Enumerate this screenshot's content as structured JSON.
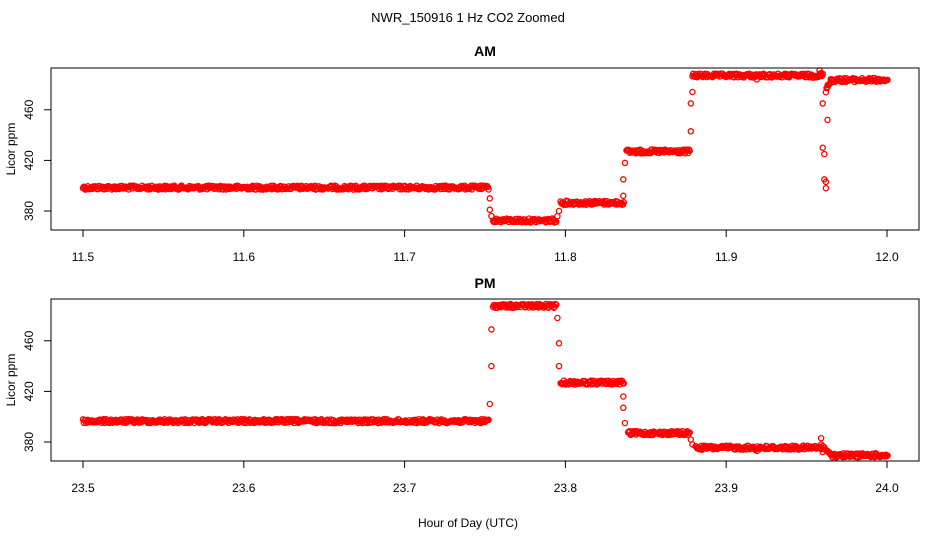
{
  "title": "NWR_150916  1 Hz CO2 Zoomed",
  "xlabel": "Hour of Day (UTC)",
  "colors": {
    "points": "#ff0000",
    "frame": "#000000"
  },
  "chart_data": [
    {
      "type": "scatter",
      "title": "AM",
      "xlabel": "",
      "ylabel": "Licor ppm",
      "xlim": [
        11.5,
        12.0
      ],
      "ylim": [
        365,
        493
      ],
      "xticks": [
        11.5,
        11.6,
        11.7,
        11.8,
        11.9,
        12.0
      ],
      "xtick_labels": [
        "11.5",
        "11.6",
        "11.7",
        "11.8",
        "11.9",
        "12.0"
      ],
      "yticks": [
        380,
        420,
        460
      ],
      "ytick_labels": [
        "380",
        "420",
        "460"
      ],
      "grid": false,
      "series": [
        {
          "segments": [
            {
              "x0": 11.5,
              "x1": 11.752,
              "y": 398.5
            },
            {
              "x0": 11.755,
              "x1": 11.794,
              "y": 372.5
            },
            {
              "x0": 11.797,
              "x1": 11.836,
              "y": 386.5
            },
            {
              "x0": 11.838,
              "x1": 11.877,
              "y": 427
            },
            {
              "x0": 11.879,
              "x1": 11.96,
              "y": 487
            }
          ],
          "recovery": {
            "x0": 11.962,
            "x1": 11.965,
            "y0": 474,
            "y1": 482
          },
          "final": {
            "x0": 11.965,
            "x1": 12.0,
            "y": 483.5
          },
          "points": [
            [
              11.753,
              390
            ],
            [
              11.753,
              381
            ],
            [
              11.754,
              376
            ],
            [
              11.795,
              376
            ],
            [
              11.796,
              380
            ],
            [
              11.836,
              392
            ],
            [
              11.836,
              405
            ],
            [
              11.837,
              418
            ],
            [
              11.878,
              443
            ],
            [
              11.878,
              465
            ],
            [
              11.879,
              474
            ],
            [
              11.919,
              484
            ],
            [
              11.958,
              491
            ],
            [
              11.959,
              489
            ],
            [
              11.96,
              465
            ],
            [
              11.96,
              430
            ],
            [
              11.961,
              425
            ],
            [
              11.961,
              405
            ],
            [
              11.962,
              398
            ],
            [
              11.962,
              403
            ],
            [
              11.963,
              452
            ],
            [
              11.963,
              478
            ]
          ]
        }
      ]
    },
    {
      "type": "scatter",
      "title": "PM",
      "xlabel": "",
      "ylabel": "Licor ppm",
      "xlim": [
        23.5,
        24.0
      ],
      "ylim": [
        365,
        493
      ],
      "xticks": [
        23.5,
        23.6,
        23.7,
        23.8,
        23.9,
        24.0
      ],
      "xtick_labels": [
        "23.5",
        "23.6",
        "23.7",
        "23.8",
        "23.9",
        "24.0"
      ],
      "yticks": [
        380,
        420,
        460
      ],
      "ytick_labels": [
        "380",
        "420",
        "460"
      ],
      "grid": false,
      "series": [
        {
          "segments": [
            {
              "x0": 23.5,
              "x1": 23.752,
              "y": 396.5
            },
            {
              "x0": 23.755,
              "x1": 23.794,
              "y": 487.5
            },
            {
              "x0": 23.797,
              "x1": 23.836,
              "y": 427
            },
            {
              "x0": 23.839,
              "x1": 23.877,
              "y": 387
            },
            {
              "x0": 23.881,
              "x1": 23.96,
              "y": 375.5
            }
          ],
          "recovery": {
            "x0": 23.961,
            "x1": 23.966,
            "y0": 376,
            "y1": 370
          },
          "final": {
            "x0": 23.966,
            "x1": 24.0,
            "y": 369.5
          },
          "points": [
            [
              23.753,
              410
            ],
            [
              23.754,
              440
            ],
            [
              23.754,
              469
            ],
            [
              23.795,
              478
            ],
            [
              23.796,
              458
            ],
            [
              23.796,
              440
            ],
            [
              23.836,
              416
            ],
            [
              23.836,
              407
            ],
            [
              23.837,
              395
            ],
            [
              23.878,
              382
            ],
            [
              23.879,
              378
            ],
            [
              23.919,
              373
            ],
            [
              23.959,
              383
            ],
            [
              23.959,
              378
            ],
            [
              23.96,
              372
            ]
          ]
        }
      ]
    }
  ]
}
